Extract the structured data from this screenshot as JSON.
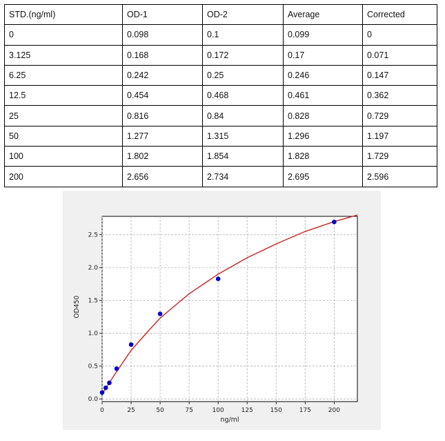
{
  "table": {
    "headers": [
      "STD.(ng/ml)",
      "OD-1",
      "OD-2",
      "Average",
      "Corrected"
    ],
    "rows": [
      [
        "0",
        "0.098",
        "0.1",
        "0.099",
        "0"
      ],
      [
        "3.125",
        "0.168",
        "0.172",
        "0.17",
        "0.071"
      ],
      [
        "6.25",
        "0.242",
        "0.25",
        "0.246",
        "0.147"
      ],
      [
        "12.5",
        "0.454",
        "0.468",
        "0.461",
        "0.362"
      ],
      [
        "25",
        "0.816",
        "0.84",
        "0.828",
        "0.729"
      ],
      [
        "50",
        "1.277",
        "1.315",
        "1.296",
        "1.197"
      ],
      [
        "100",
        "1.802",
        "1.854",
        "1.828",
        "1.729"
      ],
      [
        "200",
        "2.656",
        "2.734",
        "2.695",
        "2.596"
      ]
    ]
  },
  "chart_data": {
    "type": "scatter",
    "xlabel": "ng/ml",
    "ylabel": "OD450",
    "xlim": [
      0,
      220
    ],
    "ylim": [
      -0.04,
      2.78
    ],
    "xticks": [
      0,
      25,
      50,
      75,
      100,
      125,
      150,
      175,
      200
    ],
    "yticks": [
      0.0,
      0.5,
      1.0,
      1.5,
      2.0,
      2.5
    ],
    "xtick_labels": [
      "0",
      "25",
      "50",
      "75",
      "100",
      "125",
      "150",
      "175",
      "200"
    ],
    "ytick_labels": [
      "0.0",
      "0.5",
      "1.0",
      "1.5",
      "2.0",
      "2.5"
    ],
    "grid": true,
    "series": [
      {
        "kind": "points",
        "color": "#0000cc",
        "x": [
          0,
          3.125,
          6.25,
          12.5,
          25,
          50,
          100,
          200
        ],
        "y": [
          0.099,
          0.17,
          0.246,
          0.461,
          0.828,
          1.296,
          1.828,
          2.695
        ]
      },
      {
        "kind": "fit-curve",
        "color": "#cc2222",
        "x": [
          0,
          2,
          5,
          10,
          15,
          20,
          25,
          30,
          40,
          50,
          60,
          75,
          90,
          100,
          125,
          150,
          175,
          200,
          220
        ],
        "y": [
          0.08,
          0.13,
          0.21,
          0.35,
          0.48,
          0.61,
          0.74,
          0.84,
          1.04,
          1.23,
          1.38,
          1.6,
          1.78,
          1.9,
          2.15,
          2.36,
          2.55,
          2.7,
          2.8
        ]
      }
    ]
  }
}
